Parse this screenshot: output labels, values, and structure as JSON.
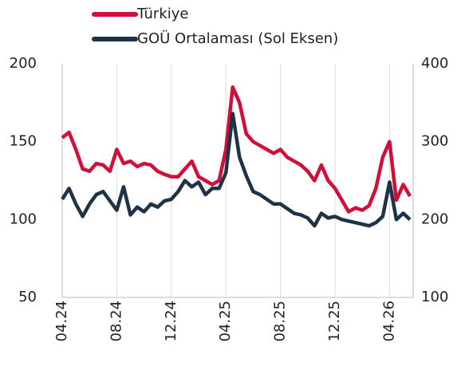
{
  "chart_data": {
    "type": "line",
    "categories": [
      "04.24",
      null,
      null,
      null,
      null,
      null,
      null,
      null,
      "08.24",
      null,
      null,
      null,
      null,
      null,
      null,
      null,
      "12.24",
      null,
      null,
      null,
      null,
      null,
      null,
      null,
      "04.25",
      null,
      null,
      null,
      null,
      null,
      null,
      null,
      "08.25",
      null,
      null,
      null,
      null,
      null,
      null,
      null,
      "12.25",
      null,
      null,
      null,
      null,
      null,
      null,
      null,
      "04.26",
      null,
      null,
      null
    ],
    "series": [
      {
        "name": "Türkiye",
        "color": "#d0103a",
        "axis": "y2",
        "values": [
          305,
          312,
          290,
          265,
          262,
          272,
          270,
          262,
          290,
          272,
          275,
          268,
          272,
          270,
          262,
          258,
          255,
          255,
          265,
          275,
          255,
          250,
          245,
          250,
          290,
          370,
          350,
          310,
          300,
          295,
          290,
          285,
          290,
          280,
          275,
          270,
          262,
          250,
          270,
          250,
          240,
          225,
          210,
          215,
          212,
          218,
          240,
          280,
          300,
          225,
          245,
          230
        ]
      },
      {
        "name": "GOÜ Ortalaması (Sol Eksen)",
        "color": "#1f3347",
        "values": [
          113,
          120,
          110,
          102,
          110,
          116,
          118,
          112,
          106,
          121,
          103,
          108,
          105,
          110,
          108,
          112,
          113,
          118,
          125,
          121,
          124,
          116,
          120,
          120,
          130,
          168,
          140,
          128,
          118,
          116,
          113,
          110,
          110,
          107,
          104,
          103,
          101,
          96,
          104,
          101,
          102,
          100,
          99,
          98,
          97,
          96,
          98,
          102,
          124,
          100,
          104,
          100
        ]
      }
    ],
    "ylim": [
      50,
      200
    ],
    "yticks": [
      50,
      100,
      150,
      200
    ],
    "y2lim": [
      100,
      400
    ],
    "y2ticks": [
      100,
      200,
      300,
      400
    ],
    "grid": true
  }
}
